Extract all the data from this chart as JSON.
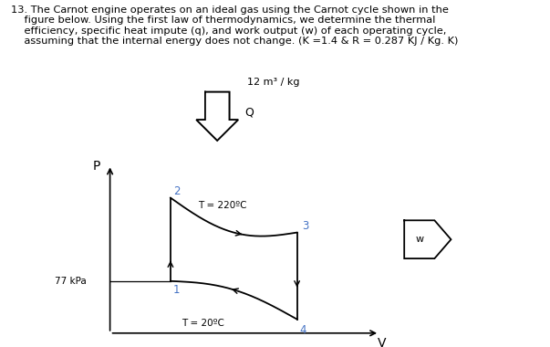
{
  "title_line1": "13. The Carnot engine operates on an ideal gas using the Carnot cycle shown in the",
  "title_line2": "    figure below. Using the first law of thermodynamics, we determine the thermal",
  "title_line3": "    efficiency, specific heat impute (q), and work output (w) of each operating cycle,",
  "title_line4": "    assuming that the internal energy does not change. (K =1.4 & R = 0.287 KJ / Kg. K)",
  "label_12m": "12 m³ / kg",
  "label_P": "P",
  "label_V": "V",
  "label_Q": "Q",
  "label_W": "w",
  "label_77kPa": "77 kPa",
  "label_T220": "T = 220ºC",
  "label_T20": "T = 20ºC",
  "point_labels": [
    "1",
    "2",
    "3",
    "4"
  ],
  "point_color": "#4472C4",
  "curve_color": "#000000",
  "arrow_color": "#000000",
  "text_color": "#000000",
  "bg_color": "#ffffff",
  "fig_width": 6.03,
  "fig_height": 3.8
}
